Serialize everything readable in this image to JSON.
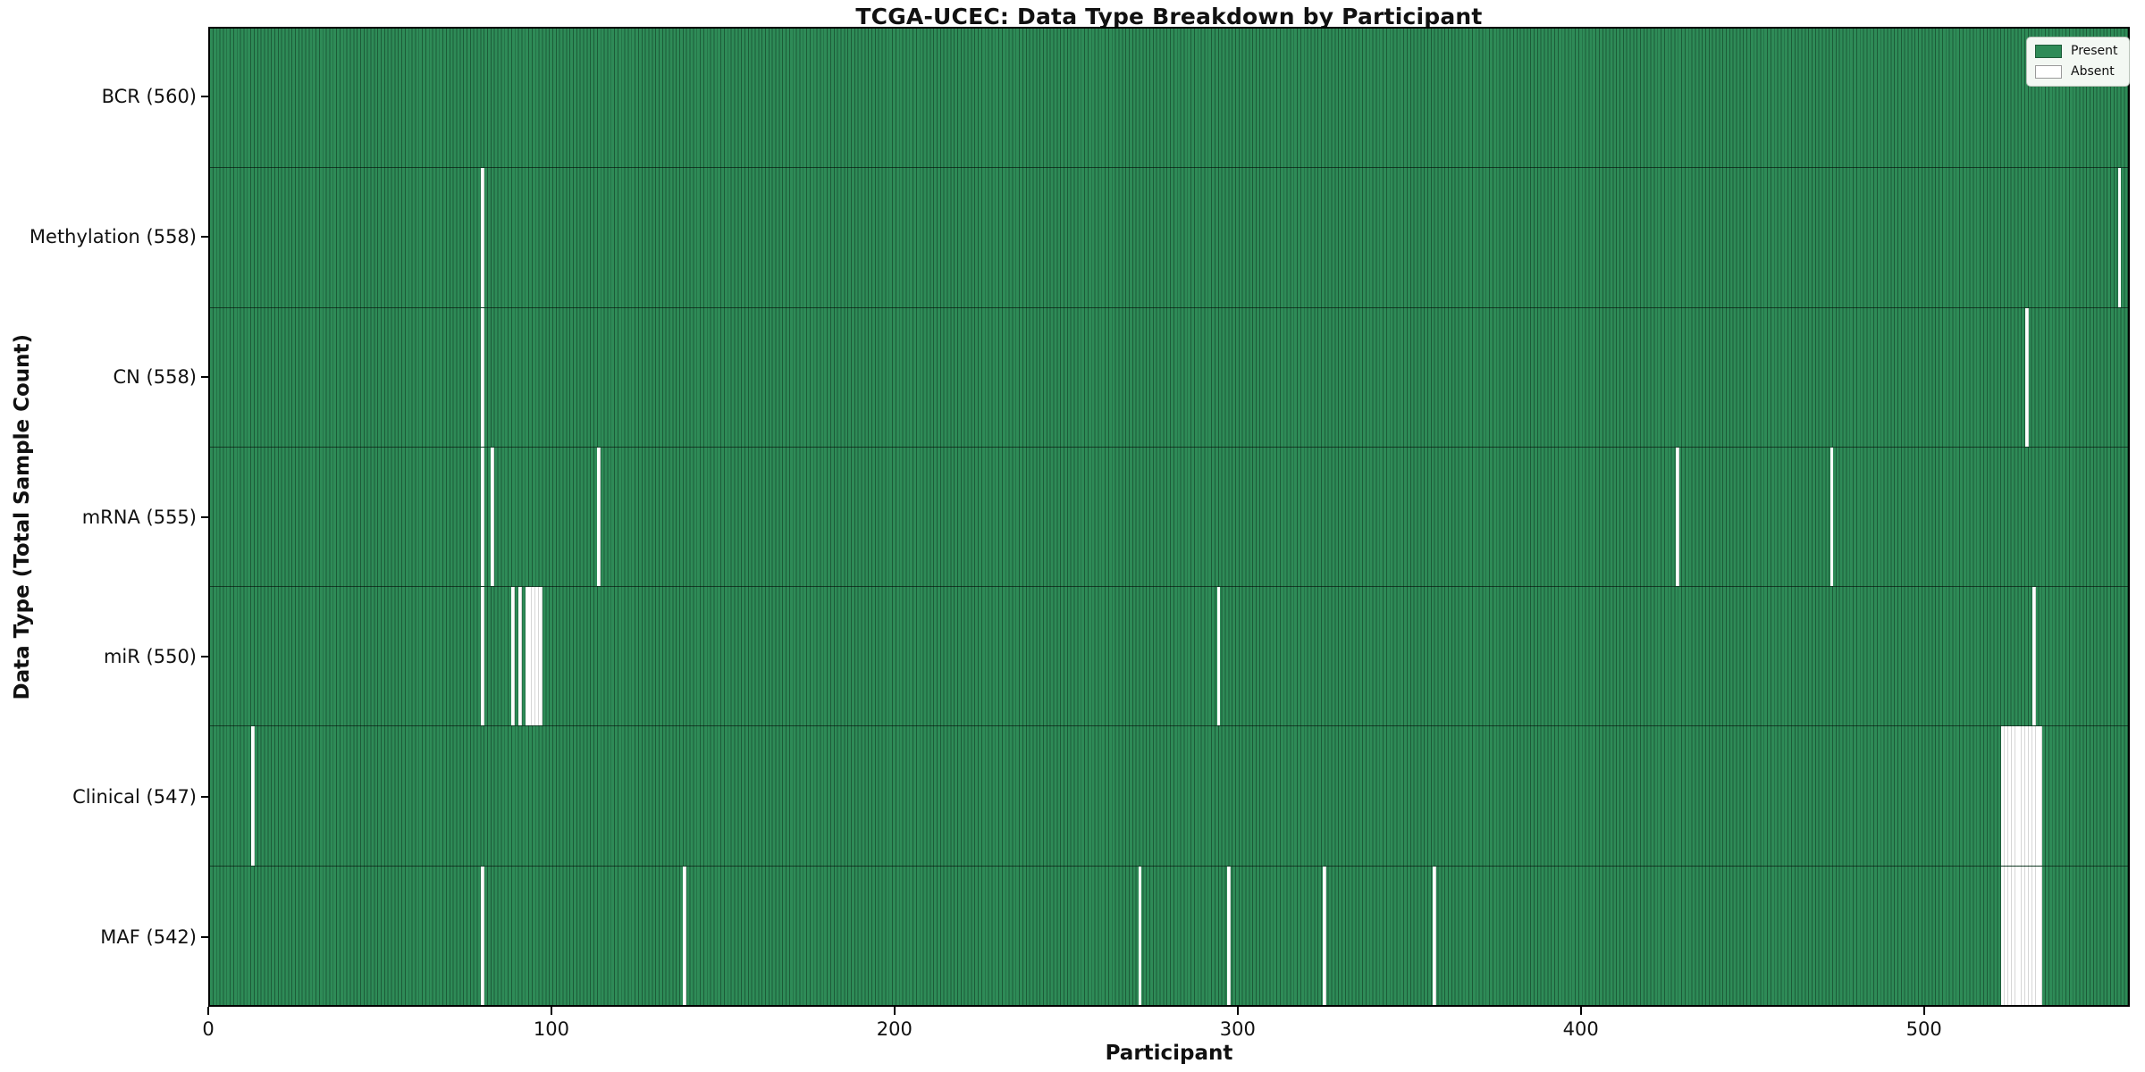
{
  "title": "TCGA-UCEC: Data Type Breakdown by Participant",
  "axes": {
    "xlabel": "Participant",
    "ylabel": "Data Type (Total Sample Count)"
  },
  "legend": {
    "present_label": "Present",
    "absent_label": "Absent"
  },
  "colors": {
    "present": "#2e8b57",
    "absent": "#ffffff",
    "cell_edge_on_green": "rgba(0,20,10,0.40)",
    "cell_edge_on_white": "rgba(0,0,0,0.16)"
  },
  "chart_data": {
    "type": "heatmap",
    "title": "TCGA-UCEC: Data Type Breakdown by Participant",
    "xlabel": "Participant",
    "ylabel": "Data Type (Total Sample Count)",
    "x_ticks": [
      0,
      100,
      200,
      300,
      400,
      500
    ],
    "xlim": [
      0,
      560
    ],
    "n_participants": 560,
    "legend_entries": [
      "Present",
      "Absent"
    ],
    "legend_position": "upper right",
    "grid": false,
    "rows": [
      {
        "key": "bcr",
        "label": "BCR (560)",
        "total_present": 560,
        "absent_participants": []
      },
      {
        "key": "methylation",
        "label": "Methylation (558)",
        "total_present": 558,
        "absent_participants": [
          79,
          557
        ]
      },
      {
        "key": "cn",
        "label": "CN (558)",
        "total_present": 558,
        "absent_participants": [
          79,
          530
        ]
      },
      {
        "key": "mrna",
        "label": "mRNA (555)",
        "total_present": 555,
        "absent_participants": [
          79,
          82,
          113,
          428,
          473
        ]
      },
      {
        "key": "mir",
        "label": "miR (550)",
        "total_present": 550,
        "absent_participants": [
          79,
          88,
          90,
          92,
          93,
          94,
          95,
          96,
          294,
          532
        ]
      },
      {
        "key": "clinical",
        "label": "Clinical (547)",
        "total_present": 547,
        "absent_participants": [
          12,
          523,
          524,
          525,
          526,
          527,
          528,
          529,
          530,
          531,
          532,
          533,
          534
        ]
      },
      {
        "key": "maf",
        "label": "MAF (542)",
        "total_present": 542,
        "absent_participants": [
          79,
          138,
          271,
          297,
          325,
          357,
          523,
          524,
          525,
          526,
          527,
          528,
          529,
          530,
          531,
          532,
          533,
          534
        ]
      }
    ]
  }
}
